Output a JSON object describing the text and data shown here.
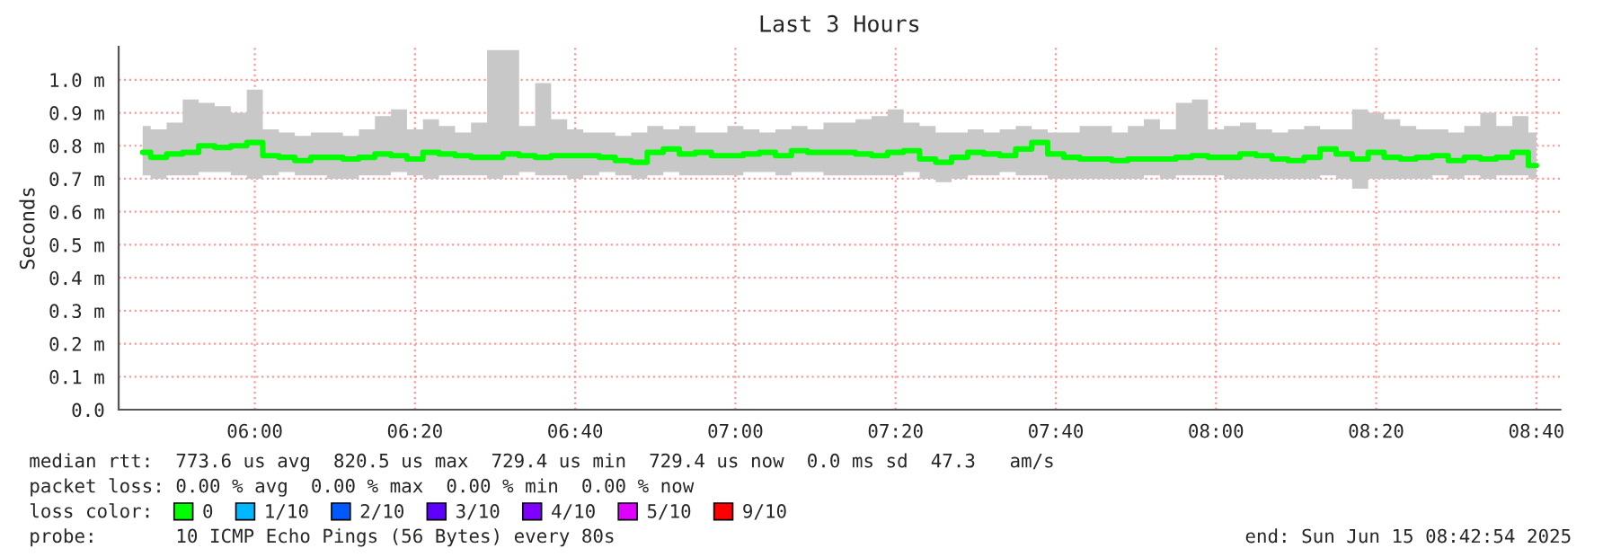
{
  "chart_data": {
    "type": "line",
    "title": "Last 3 Hours",
    "ylabel": "Seconds",
    "x": [
      5.7667,
      5.8,
      5.8333,
      5.8667,
      5.9,
      5.9333,
      5.9667,
      6.0,
      6.0333,
      6.0667,
      6.1,
      6.1333,
      6.1667,
      6.2,
      6.2333,
      6.2667,
      6.3,
      6.3333,
      6.3667,
      6.4,
      6.4333,
      6.4667,
      6.5,
      6.5333,
      6.5667,
      6.6,
      6.6333,
      6.6667,
      6.7,
      6.7333,
      6.7667,
      6.8,
      6.8333,
      6.8667,
      6.9,
      6.9333,
      6.9667,
      7.0,
      7.0333,
      7.0667,
      7.1,
      7.1333,
      7.1667,
      7.2,
      7.2333,
      7.2667,
      7.3,
      7.3333,
      7.3667,
      7.4,
      7.4333,
      7.4667,
      7.5,
      7.5333,
      7.5667,
      7.6,
      7.6333,
      7.6667,
      7.7,
      7.7333,
      7.7667,
      7.8,
      7.8333,
      7.8667,
      7.9,
      7.9333,
      7.9667,
      8.0,
      8.0333,
      8.0667,
      8.1,
      8.1333,
      8.1667,
      8.2,
      8.2333,
      8.2667,
      8.3,
      8.3333,
      8.3667,
      8.4,
      8.4333,
      8.4667,
      8.5,
      8.5333,
      8.5667,
      8.6,
      8.6333,
      8.6667
    ],
    "series": [
      {
        "name": "0",
        "color": "#00ff00",
        "values": [
          0.78,
          0.765,
          0.775,
          0.78,
          0.8,
          0.795,
          0.8,
          0.81,
          0.77,
          0.765,
          0.755,
          0.765,
          0.765,
          0.76,
          0.765,
          0.775,
          0.77,
          0.76,
          0.78,
          0.775,
          0.77,
          0.765,
          0.765,
          0.775,
          0.77,
          0.765,
          0.77,
          0.77,
          0.77,
          0.765,
          0.755,
          0.75,
          0.78,
          0.79,
          0.775,
          0.78,
          0.77,
          0.77,
          0.775,
          0.78,
          0.77,
          0.785,
          0.78,
          0.78,
          0.78,
          0.775,
          0.77,
          0.78,
          0.785,
          0.76,
          0.75,
          0.765,
          0.78,
          0.775,
          0.77,
          0.79,
          0.81,
          0.775,
          0.765,
          0.76,
          0.76,
          0.755,
          0.76,
          0.76,
          0.76,
          0.765,
          0.77,
          0.765,
          0.765,
          0.775,
          0.77,
          0.76,
          0.755,
          0.765,
          0.79,
          0.775,
          0.76,
          0.78,
          0.765,
          0.76,
          0.765,
          0.77,
          0.755,
          0.765,
          0.76,
          0.765,
          0.78,
          0.74
        ],
        "lower": [
          0.71,
          0.7,
          0.71,
          0.71,
          0.72,
          0.72,
          0.71,
          0.7,
          0.71,
          0.72,
          0.71,
          0.71,
          0.7,
          0.7,
          0.71,
          0.71,
          0.72,
          0.71,
          0.7,
          0.71,
          0.71,
          0.71,
          0.7,
          0.71,
          0.72,
          0.71,
          0.71,
          0.7,
          0.71,
          0.72,
          0.71,
          0.7,
          0.71,
          0.72,
          0.71,
          0.71,
          0.71,
          0.71,
          0.72,
          0.72,
          0.71,
          0.72,
          0.72,
          0.71,
          0.71,
          0.71,
          0.71,
          0.71,
          0.72,
          0.7,
          0.69,
          0.7,
          0.71,
          0.71,
          0.72,
          0.71,
          0.71,
          0.7,
          0.7,
          0.7,
          0.7,
          0.7,
          0.7,
          0.71,
          0.7,
          0.71,
          0.71,
          0.71,
          0.7,
          0.7,
          0.7,
          0.7,
          0.7,
          0.7,
          0.71,
          0.7,
          0.67,
          0.7,
          0.7,
          0.7,
          0.7,
          0.71,
          0.7,
          0.71,
          0.7,
          0.71,
          0.71,
          0.7
        ],
        "upper": [
          0.86,
          0.85,
          0.87,
          0.94,
          0.93,
          0.92,
          0.9,
          0.97,
          0.85,
          0.84,
          0.83,
          0.84,
          0.84,
          0.83,
          0.85,
          0.89,
          0.91,
          0.85,
          0.88,
          0.86,
          0.84,
          0.87,
          1.09,
          1.09,
          0.86,
          0.99,
          0.88,
          0.85,
          0.84,
          0.84,
          0.83,
          0.84,
          0.86,
          0.85,
          0.86,
          0.84,
          0.84,
          0.86,
          0.85,
          0.84,
          0.85,
          0.86,
          0.85,
          0.87,
          0.87,
          0.88,
          0.89,
          0.91,
          0.87,
          0.86,
          0.84,
          0.84,
          0.85,
          0.84,
          0.85,
          0.86,
          0.85,
          0.84,
          0.84,
          0.86,
          0.86,
          0.84,
          0.86,
          0.88,
          0.85,
          0.93,
          0.94,
          0.85,
          0.86,
          0.87,
          0.85,
          0.84,
          0.85,
          0.86,
          0.85,
          0.85,
          0.91,
          0.9,
          0.88,
          0.86,
          0.85,
          0.85,
          0.84,
          0.86,
          0.9,
          0.86,
          0.89,
          0.84
        ]
      },
      {
        "name": "1/10",
        "color": "#00b8ff",
        "values": [
          null,
          null,
          null,
          null,
          null,
          null,
          null,
          null,
          null,
          null,
          null,
          null,
          null,
          null,
          null,
          null,
          null,
          null,
          null,
          null,
          null,
          null,
          null,
          null,
          null,
          null,
          null,
          null,
          null,
          null,
          null,
          null,
          null,
          null,
          null,
          null,
          null,
          null,
          null,
          null,
          null,
          null,
          null,
          null,
          null,
          null,
          null,
          null,
          null,
          null,
          null,
          null,
          null,
          null,
          null,
          null,
          null,
          null,
          null,
          null,
          null,
          null,
          null,
          null,
          null,
          null,
          null,
          null,
          null,
          null,
          null,
          null,
          null,
          null,
          null,
          null,
          null,
          null,
          null,
          null,
          null,
          null,
          null,
          null,
          null,
          null,
          null,
          null
        ]
      },
      {
        "name": "2/10",
        "color": "#0059ff",
        "values": [
          null,
          null,
          null,
          null,
          null,
          null,
          null,
          null,
          null,
          null,
          null,
          null,
          null,
          null,
          null,
          null,
          null,
          null,
          null,
          null,
          null,
          null,
          null,
          null,
          null,
          null,
          null,
          null,
          null,
          null,
          null,
          null,
          null,
          null,
          null,
          null,
          null,
          null,
          null,
          null,
          null,
          null,
          null,
          null,
          null,
          null,
          null,
          null,
          null,
          null,
          null,
          null,
          null,
          null,
          null,
          null,
          null,
          null,
          null,
          null,
          null,
          null,
          null,
          null,
          null,
          null,
          null,
          null,
          null,
          null,
          null,
          null,
          null,
          null,
          null,
          null,
          null,
          null,
          null,
          null,
          null,
          null,
          null,
          null,
          null,
          null,
          null,
          null
        ]
      },
      {
        "name": "3/10",
        "color": "#5e00ff",
        "values": [
          null,
          null,
          null,
          null,
          null,
          null,
          null,
          null,
          null,
          null,
          null,
          null,
          null,
          null,
          null,
          null,
          null,
          null,
          null,
          null,
          null,
          null,
          null,
          null,
          null,
          null,
          null,
          null,
          null,
          null,
          null,
          null,
          null,
          null,
          null,
          null,
          null,
          null,
          null,
          null,
          null,
          null,
          null,
          null,
          null,
          null,
          null,
          null,
          null,
          null,
          null,
          null,
          null,
          null,
          null,
          null,
          null,
          null,
          null,
          null,
          null,
          null,
          null,
          null,
          null,
          null,
          null,
          null,
          null,
          null,
          null,
          null,
          null,
          null,
          null,
          null,
          null,
          null,
          null,
          null,
          null,
          null,
          null,
          null,
          null,
          null,
          null,
          null
        ]
      },
      {
        "name": "4/10",
        "color": "#7e00ff",
        "values": [
          null,
          null,
          null,
          null,
          null,
          null,
          null,
          null,
          null,
          null,
          null,
          null,
          null,
          null,
          null,
          null,
          null,
          null,
          null,
          null,
          null,
          null,
          null,
          null,
          null,
          null,
          null,
          null,
          null,
          null,
          null,
          null,
          null,
          null,
          null,
          null,
          null,
          null,
          null,
          null,
          null,
          null,
          null,
          null,
          null,
          null,
          null,
          null,
          null,
          null,
          null,
          null,
          null,
          null,
          null,
          null,
          null,
          null,
          null,
          null,
          null,
          null,
          null,
          null,
          null,
          null,
          null,
          null,
          null,
          null,
          null,
          null,
          null,
          null,
          null,
          null,
          null,
          null,
          null,
          null,
          null,
          null,
          null,
          null,
          null,
          null,
          null,
          null
        ]
      },
      {
        "name": "5/10",
        "color": "#dd00ff",
        "values": [
          null,
          null,
          null,
          null,
          null,
          null,
          null,
          null,
          null,
          null,
          null,
          null,
          null,
          null,
          null,
          null,
          null,
          null,
          null,
          null,
          null,
          null,
          null,
          null,
          null,
          null,
          null,
          null,
          null,
          null,
          null,
          null,
          null,
          null,
          null,
          null,
          null,
          null,
          null,
          null,
          null,
          null,
          null,
          null,
          null,
          null,
          null,
          null,
          null,
          null,
          null,
          null,
          null,
          null,
          null,
          null,
          null,
          null,
          null,
          null,
          null,
          null,
          null,
          null,
          null,
          null,
          null,
          null,
          null,
          null,
          null,
          null,
          null,
          null,
          null,
          null,
          null,
          null,
          null,
          null,
          null,
          null,
          null,
          null,
          null,
          null,
          null,
          null
        ]
      },
      {
        "name": "9/10",
        "color": "#ff0000",
        "values": [
          null,
          null,
          null,
          null,
          null,
          null,
          null,
          null,
          null,
          null,
          null,
          null,
          null,
          null,
          null,
          null,
          null,
          null,
          null,
          null,
          null,
          null,
          null,
          null,
          null,
          null,
          null,
          null,
          null,
          null,
          null,
          null,
          null,
          null,
          null,
          null,
          null,
          null,
          null,
          null,
          null,
          null,
          null,
          null,
          null,
          null,
          null,
          null,
          null,
          null,
          null,
          null,
          null,
          null,
          null,
          null,
          null,
          null,
          null,
          null,
          null,
          null,
          null,
          null,
          null,
          null,
          null,
          null,
          null,
          null,
          null,
          null,
          null,
          null,
          null,
          null,
          null,
          null,
          null,
          null,
          null,
          null,
          null,
          null,
          null,
          null,
          null,
          null
        ]
      }
    ],
    "legend_title": "loss color:",
    "legend": "bottom",
    "xlim": [
      5.7167,
      8.7167
    ],
    "xticks": [
      {
        "value": 6.0,
        "label": "06:00"
      },
      {
        "value": 6.3333,
        "label": "06:20"
      },
      {
        "value": 6.6667,
        "label": "06:40"
      },
      {
        "value": 7.0,
        "label": "07:00"
      },
      {
        "value": 7.3333,
        "label": "07:20"
      },
      {
        "value": 7.6667,
        "label": "07:40"
      },
      {
        "value": 8.0,
        "label": "08:00"
      },
      {
        "value": 8.3333,
        "label": "08:20"
      },
      {
        "value": 8.6667,
        "label": "08:40"
      }
    ],
    "ylim": [
      0,
      1.1
    ],
    "yticks": [
      {
        "value": 0,
        "label": "0.0"
      },
      {
        "value": 0.1,
        "label": "0.1 m"
      },
      {
        "value": 0.2,
        "label": "0.2 m"
      },
      {
        "value": 0.3,
        "label": "0.3 m"
      },
      {
        "value": 0.4,
        "label": "0.4 m"
      },
      {
        "value": 0.5,
        "label": "0.5 m"
      },
      {
        "value": 0.6,
        "label": "0.6 m"
      },
      {
        "value": 0.7,
        "label": "0.7 m"
      },
      {
        "value": 0.8,
        "label": "0.8 m"
      },
      {
        "value": 0.9,
        "label": "0.9 m"
      },
      {
        "value": 1.0,
        "label": "1.0 m"
      }
    ],
    "grid": true,
    "marker": "none",
    "line_style": "solid",
    "annotations": [
      "median rtt:  773.6 us avg  820.5 us max  729.4 us min  729.4 us now  0.0 ms sd  47.3   am/s",
      "packet loss: 0.00 % avg  0.00 % max  0.00 % min  0.00 % now",
      "probe:       10 ICMP Echo Pings (56 Bytes) every 80s",
      "end: Sun Jun 15 08:42:54 2025"
    ]
  }
}
